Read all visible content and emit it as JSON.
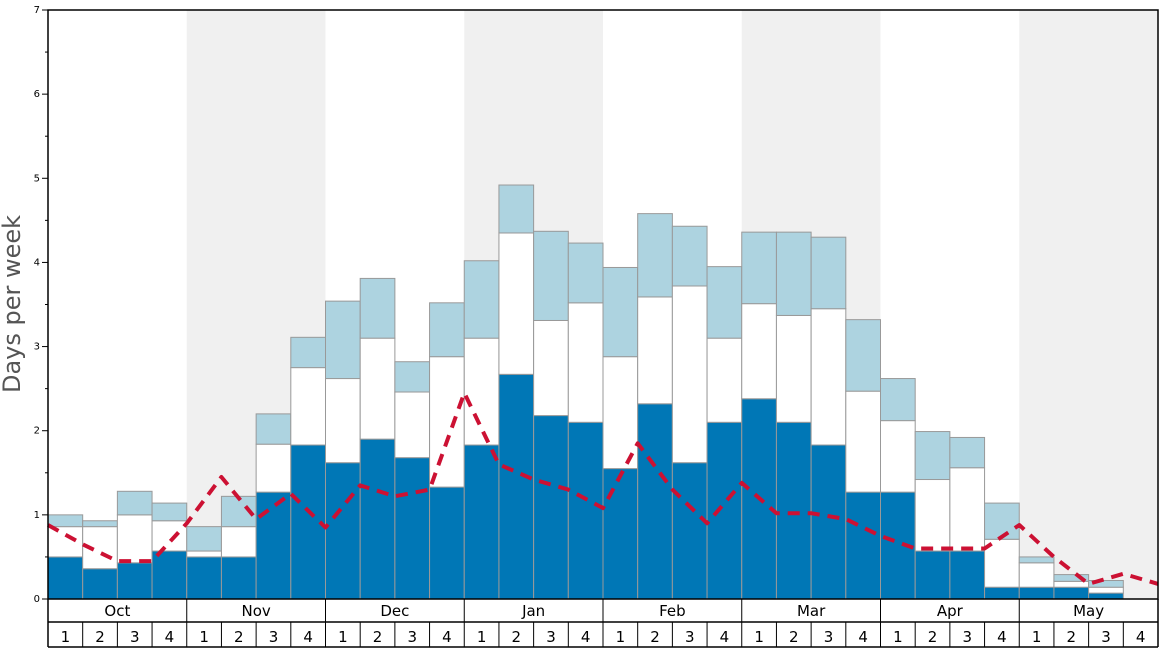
{
  "chart_data": {
    "type": "bar",
    "ylabel": "Days per week",
    "ylim": [
      0,
      7
    ],
    "yticks": [
      0,
      1,
      2,
      3,
      4,
      5,
      6,
      7
    ],
    "months": [
      "Oct",
      "Nov",
      "Dec",
      "Jan",
      "Feb",
      "Mar",
      "Apr",
      "May"
    ],
    "week_labels": [
      "1",
      "2",
      "3",
      "4"
    ],
    "colors": {
      "bottom": "#0077b6",
      "middle": "#ffffff",
      "top": "#add3e0",
      "line": "#cc1133",
      "shade": "#f0f0f0",
      "bar_edge": "#999999"
    },
    "series": [
      {
        "values": [
          0.5,
          0.36,
          0.43,
          0.57,
          0.5,
          0.5,
          1.27,
          1.83,
          1.62,
          1.9,
          1.68,
          1.33,
          1.83,
          2.67,
          2.18,
          2.1,
          1.55,
          2.32,
          1.62,
          2.1,
          2.38,
          2.1,
          1.83,
          1.27,
          1.27,
          0.57,
          0.57,
          0.14,
          0.14,
          0.14,
          0.07,
          0
        ]
      },
      {
        "values": [
          0.36,
          0.5,
          0.57,
          0.36,
          0.07,
          0.36,
          0.57,
          0.92,
          1.0,
          1.2,
          0.78,
          1.55,
          1.27,
          1.68,
          1.13,
          1.42,
          1.33,
          1.27,
          2.1,
          1.0,
          1.13,
          1.27,
          1.62,
          1.2,
          0.85,
          0.85,
          0.99,
          0.57,
          0.29,
          0.07,
          0.07,
          0
        ]
      },
      {
        "values": [
          0.14,
          0.07,
          0.28,
          0.21,
          0.29,
          0.36,
          0.36,
          0.36,
          0.92,
          0.71,
          0.36,
          0.64,
          0.92,
          0.57,
          1.06,
          0.71,
          1.06,
          0.99,
          0.71,
          0.85,
          0.85,
          0.99,
          0.85,
          0.85,
          0.5,
          0.57,
          0.36,
          0.43,
          0.07,
          0.08,
          0.08,
          0
        ]
      },
      {
        "values": [
          0.88,
          0.65,
          0.45,
          0.45,
          0.9,
          1.45,
          0.95,
          1.25,
          0.85,
          1.35,
          1.22,
          1.3,
          2.45,
          1.6,
          1.42,
          1.3,
          1.08,
          1.85,
          1.3,
          0.9,
          1.38,
          1.02,
          1.02,
          0.95,
          0.75,
          0.6,
          0.6,
          0.6,
          0.88,
          0.5,
          0.18,
          0.3,
          0.18
        ]
      }
    ]
  }
}
